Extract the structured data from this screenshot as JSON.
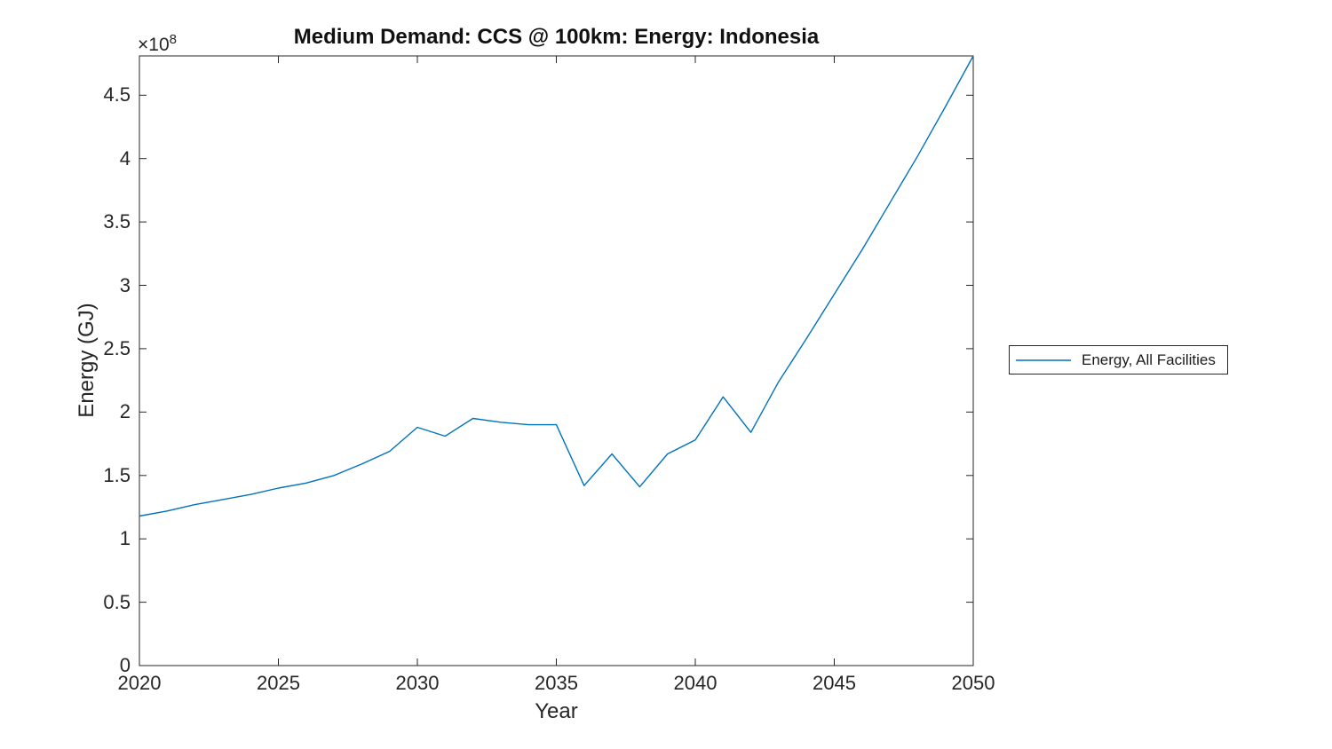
{
  "figure": {
    "background": "#ffffff"
  },
  "chart_data": {
    "type": "line",
    "title": "Medium Demand: CCS @ 100km: Energy: Indonesia",
    "xlabel": "Year",
    "ylabel": "Energy (GJ)",
    "y_axis_multiplier": {
      "base": "×10",
      "exponent": "8"
    },
    "legend_label": "Energy, All Facilities",
    "legend_position": "right-outside",
    "grid": false,
    "box": true,
    "line_color": "#0072BD",
    "axis_color": "#262626",
    "xlim": [
      2020,
      2050
    ],
    "ylim_e8": [
      0,
      4.81
    ],
    "xticks": [
      2020,
      2025,
      2030,
      2035,
      2040,
      2045,
      2050
    ],
    "yticks_e8": [
      0,
      0.5,
      1,
      1.5,
      2,
      2.5,
      3,
      3.5,
      4,
      4.5
    ],
    "y_units": "GJ (values in 1e8)",
    "x": [
      2020,
      2021,
      2022,
      2023,
      2024,
      2025,
      2026,
      2027,
      2028,
      2029,
      2030,
      2031,
      2032,
      2033,
      2034,
      2035,
      2036,
      2037,
      2038,
      2039,
      2040,
      2041,
      2042,
      2043,
      2044,
      2045,
      2046,
      2047,
      2048,
      2049,
      2050
    ],
    "values_e8": [
      1.18,
      1.22,
      1.27,
      1.31,
      1.35,
      1.4,
      1.44,
      1.5,
      1.59,
      1.69,
      1.88,
      1.81,
      1.95,
      1.92,
      1.9,
      1.9,
      1.42,
      1.67,
      1.41,
      1.67,
      1.78,
      2.12,
      1.84,
      2.24,
      2.58,
      2.93,
      3.28,
      3.65,
      4.02,
      4.41,
      4.81
    ]
  }
}
